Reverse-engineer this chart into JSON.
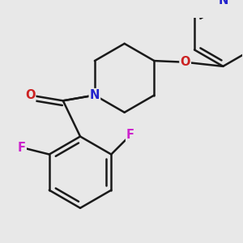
{
  "background_color": "#e8e8e8",
  "bond_color": "#1a1a1a",
  "bond_width": 1.8,
  "atom_labels": {
    "N1": {
      "symbol": "N",
      "color": "#2222cc",
      "fontsize": 10.5
    },
    "O1": {
      "symbol": "O",
      "color": "#cc2222",
      "fontsize": 10.5
    },
    "O2": {
      "symbol": "O",
      "color": "#cc2222",
      "fontsize": 10.5
    },
    "F1": {
      "symbol": "F",
      "color": "#cc22cc",
      "fontsize": 10.5
    },
    "F2": {
      "symbol": "F",
      "color": "#cc22cc",
      "fontsize": 10.5
    },
    "N2": {
      "symbol": "N",
      "color": "#2222cc",
      "fontsize": 10.5
    }
  }
}
